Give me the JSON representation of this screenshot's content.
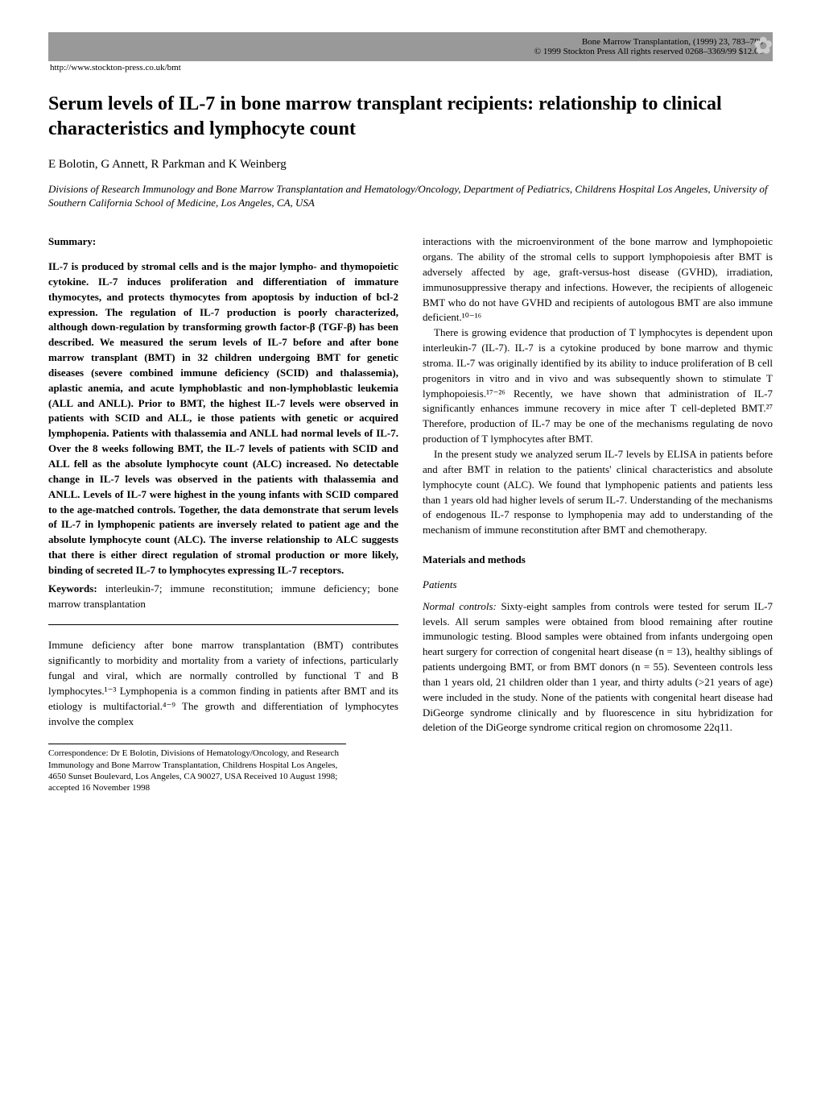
{
  "header": {
    "journal": "Bone Marrow Transplantation, (1999) 23, 783–788",
    "copyright": "© 1999 Stockton Press   All rights reserved 0268–3369/99 $12.00",
    "url": "http://www.stockton-press.co.uk/bmt"
  },
  "title": "Serum levels of IL-7 in bone marrow transplant recipients: relationship to clinical characteristics and lymphocyte count",
  "authors": "E Bolotin, G Annett, R Parkman and K Weinberg",
  "affiliation": "Divisions of Research Immunology and Bone Marrow Transplantation and Hematology/Oncology, Department of Pediatrics, Childrens Hospital Los Angeles, University of Southern California School of Medicine, Los Angeles, CA, USA",
  "left_col": {
    "summary_head": "Summary:",
    "abstract": "IL-7 is produced by stromal cells and is the major lympho- and thymopoietic cytokine. IL-7 induces proliferation and differentiation of immature thymocytes, and protects thymocytes from apoptosis by induction of bcl-2 expression. The regulation of IL-7 production is poorly characterized, although down-regulation by transforming growth factor-β (TGF-β) has been described. We measured the serum levels of IL-7 before and after bone marrow transplant (BMT) in 32 children undergoing BMT for genetic diseases (severe combined immune deficiency (SCID) and thalassemia), aplastic anemia, and acute lymphoblastic and non-lymphoblastic leukemia (ALL and ANLL). Prior to BMT, the highest IL-7 levels were observed in patients with SCID and ALL, ie those patients with genetic or acquired lymphopenia. Patients with thalassemia and ANLL had normal levels of IL-7. Over the 8 weeks following BMT, the IL-7 levels of patients with SCID and ALL fell as the absolute lymphocyte count (ALC) increased. No detectable change in IL-7 levels was observed in the patients with thalassemia and ANLL. Levels of IL-7 were highest in the young infants with SCID compared to the age-matched controls. Together, the data demonstrate that serum levels of IL-7 in lymphopenic patients are inversely related to patient age and the absolute lymphocyte count (ALC). The inverse relationship to ALC suggests that there is either direct regulation of stromal production or more likely, binding of secreted IL-7 to lymphocytes expressing IL-7 receptors.",
    "keywords_label": "Keywords:",
    "keywords": "interleukin-7; immune reconstitution; immune deficiency; bone marrow transplantation",
    "intro_p1": "Immune deficiency after bone marrow transplantation (BMT) contributes significantly to morbidity and mortality from a variety of infections, particularly fungal and viral, which are normally controlled by functional T and B lymphocytes.¹⁻³ Lymphopenia is a common finding in patients after BMT and its etiology is multifactorial.⁴⁻⁹ The growth and differentiation of lymphocytes involve the complex",
    "footnote": "Correspondence: Dr E Bolotin, Divisions of Hematology/Oncology, and Research Immunology and Bone Marrow Transplantation, Childrens Hospital Los Angeles, 4650 Sunset Boulevard, Los Angeles, CA 90027, USA Received 10 August 1998; accepted 16 November 1998"
  },
  "right_col": {
    "p1": "interactions with the microenvironment of the bone marrow and lymphopoietic organs. The ability of the stromal cells to support lymphopoiesis after BMT is adversely affected by age, graft-versus-host disease (GVHD), irradiation, immunosuppressive therapy and infections. However, the recipients of allogeneic BMT who do not have GVHD and recipients of autologous BMT are also immune deficient.¹⁰⁻¹⁶",
    "p2": "There is growing evidence that production of T lymphocytes is dependent upon interleukin-7 (IL-7). IL-7 is a cytokine produced by bone marrow and thymic stroma. IL-7 was originally identified by its ability to induce proliferation of B cell progenitors in vitro and in vivo and was subsequently shown to stimulate T lymphopoiesis.¹⁷⁻²⁶ Recently, we have shown that administration of IL-7 significantly enhances immune recovery in mice after T cell-depleted BMT.²⁷ Therefore, production of IL-7 may be one of the mechanisms regulating de novo production of T lymphocytes after BMT.",
    "p3": "In the present study we analyzed serum IL-7 levels by ELISA in patients before and after BMT in relation to the patients' clinical characteristics and absolute lymphocyte count (ALC). We found that lymphopenic patients and patients less than 1 years old had higher levels of serum IL-7. Understanding of the mechanisms of endogenous IL-7 response to lymphopenia may add to understanding of the mechanism of immune reconstitution after BMT and chemotherapy.",
    "methods_head": "Materials and methods",
    "patients_head": "Patients",
    "normal_controls_label": "Normal controls:",
    "normal_controls": "Sixty-eight samples from controls were tested for serum IL-7 levels. All serum samples were obtained from blood remaining after routine immunologic testing. Blood samples were obtained from infants undergoing open heart surgery for correction of congenital heart disease (n = 13), healthy siblings of patients undergoing BMT, or from BMT donors (n = 55). Seventeen controls less than 1 years old, 21 children older than 1 year, and thirty adults (>21 years of age) were included in the study. None of the patients with congenital heart disease had DiGeorge syndrome clinically and by fluorescence in situ hybridization for deletion of the DiGeorge syndrome critical region on chromosome 22q11."
  }
}
